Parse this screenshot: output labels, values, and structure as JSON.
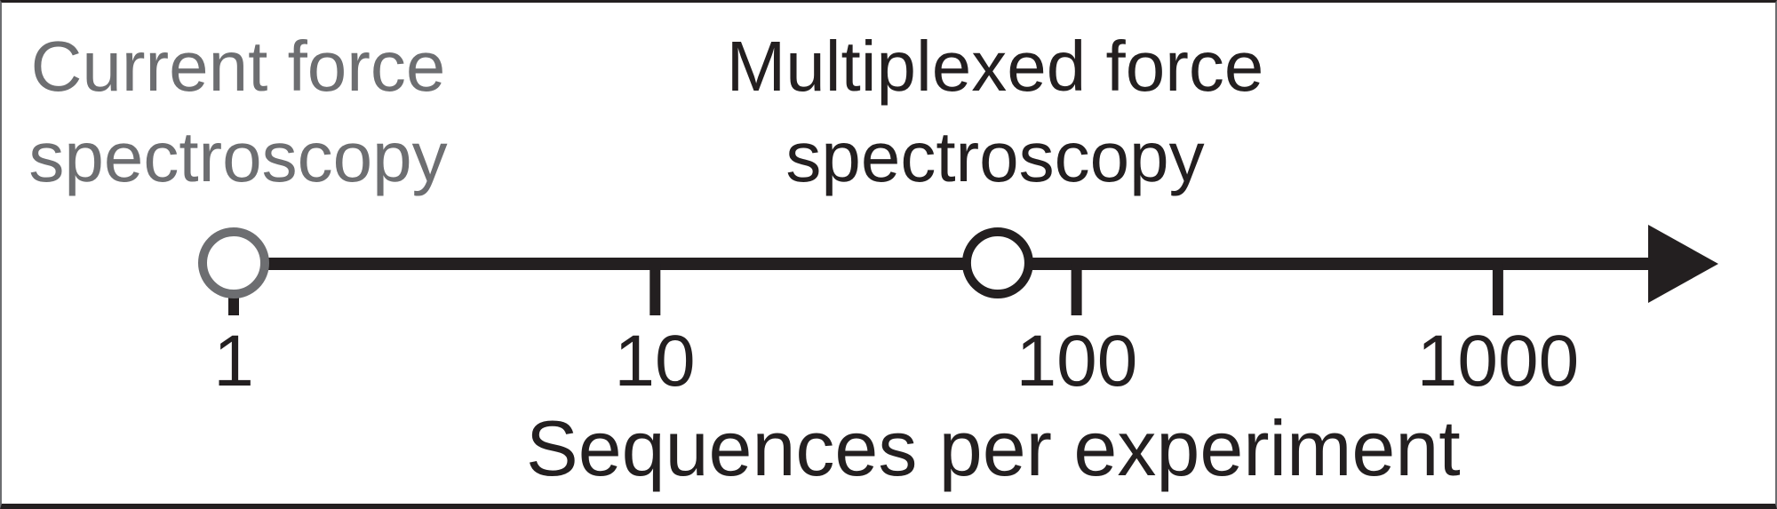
{
  "labels": {
    "current": {
      "line1": "Current force",
      "line2": "spectroscopy"
    },
    "multiplexed": {
      "line1": "Multiplexed force",
      "line2": "spectroscopy"
    }
  },
  "axis": {
    "title": "Sequences per experiment",
    "scale": "log10",
    "arrow_direction": "right"
  },
  "colors": {
    "current_gray": "#6d6e71",
    "ink_black": "#231f20",
    "marker_fill": "#ffffff",
    "background": "#ffffff"
  },
  "chart_data": {
    "type": "scatter",
    "title": "",
    "xlabel": "Sequences per experiment",
    "ylabel": "",
    "x_scale": "log10",
    "x_ticks": [
      "1",
      "10",
      "100",
      "1000"
    ],
    "x_tick_values": [
      1,
      10,
      100,
      1000
    ],
    "x_axis_arrow": "right (open-ended beyond 1000)",
    "grid": false,
    "legend": "none",
    "points": [
      {
        "name": "Current force spectroscopy",
        "x": 1,
        "marker": "open-circle",
        "color": "#6d6e71",
        "label_position": "above-left"
      },
      {
        "name": "Multiplexed force spectroscopy",
        "x": 65,
        "marker": "open-circle",
        "color": "#231f20",
        "label_position": "above"
      }
    ]
  }
}
